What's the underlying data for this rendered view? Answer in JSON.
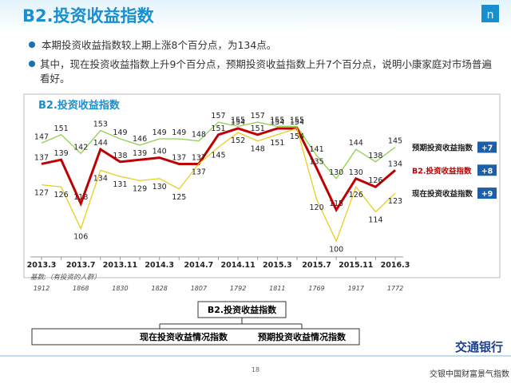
{
  "slide": {
    "title": "B2.投资收益指数",
    "bullets": [
      "本期投资收益指数较上期上涨8个百分点，为134点。",
      "其中，现在投资收益指数上升9个百分点，预期投资收益指数上升7个百分点，说明小康家庭对市场普遍看好。"
    ],
    "page_number": "18",
    "bank_name": "交通银行",
    "footer_brand": "交银中国财富景气指数"
  },
  "chart_data": {
    "type": "line",
    "title": "B2.投资收益指数",
    "x": [
      "2013.3",
      null,
      "2013.7",
      null,
      "2013.11",
      null,
      "2014.3",
      null,
      "2014.7",
      null,
      "2014.11",
      null,
      "2015.3",
      null,
      "2015.7",
      null,
      "2015.11",
      null,
      "2016.3"
    ],
    "ylim": [
      94,
      162
    ],
    "series": [
      {
        "name": "预期投资收益指数",
        "color": "#8fd14f",
        "change": "+7",
        "values": [
          147,
          151,
          142,
          153,
          149,
          146,
          149,
          149,
          148,
          157,
          155,
          157,
          155,
          155,
          141,
          130,
          144,
          138,
          145
        ]
      },
      {
        "name": "B2.投资收益指数",
        "color": "#c00000",
        "change": "+8",
        "values": [
          137,
          139,
          118,
          144,
          138,
          139,
          140,
          137,
          137,
          151,
          154,
          151,
          154,
          154,
          135,
          115,
          130,
          126,
          134
        ]
      },
      {
        "name": "现在投资收益指数",
        "color": "#e6cf1e",
        "change": "+9",
        "values": [
          127,
          126,
          106,
          134,
          131,
          129,
          130,
          125,
          137,
          145,
          152,
          148,
          151,
          154,
          120,
          100,
          126,
          114,
          123
        ]
      }
    ],
    "base_label": "基数:（有投资的人群）",
    "base_counts": [
      "1912",
      "1868",
      "1830",
      "1828",
      "1807",
      "1792",
      "1811",
      "1769",
      "1917",
      "1772"
    ]
  },
  "tree": {
    "root": "B2.投资收益指数",
    "children": [
      "现在投资收益情况指数",
      "预期投资收益情况指数"
    ]
  }
}
